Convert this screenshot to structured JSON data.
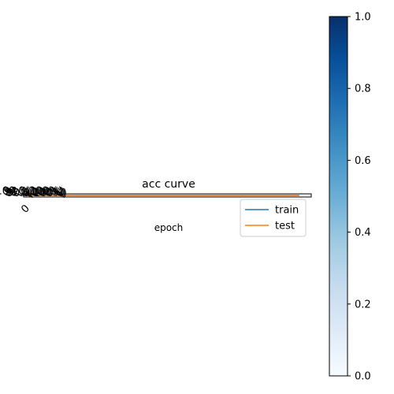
{
  "chart_data": {
    "type": "line",
    "title": "acc curve",
    "xlabel": "epoch",
    "ylabel": "",
    "x_tick_labels": [
      "0"
    ],
    "y_tick_labels": [
      "90.0(100%)",
      "92.5(100%)",
      "95.0(100%)",
      "97.5(100%)",
      "100.0(100%)"
    ],
    "legend_position": "right, below plot",
    "grid": false,
    "series": [
      {
        "name": "train",
        "x": [
          0,
          1
        ],
        "y": [
          0.5,
          0.5
        ],
        "color": "#1f77b4"
      },
      {
        "name": "test",
        "x": [
          0,
          1
        ],
        "y": [
          0.5,
          0.5
        ],
        "color": "#ff7f0e"
      }
    ],
    "colorbar": {
      "colormap": "Blues",
      "range": [
        0,
        1
      ],
      "tick_labels": [
        "0.0",
        "0.2",
        "0.4",
        "0.6",
        "0.8",
        "1.0"
      ]
    }
  }
}
